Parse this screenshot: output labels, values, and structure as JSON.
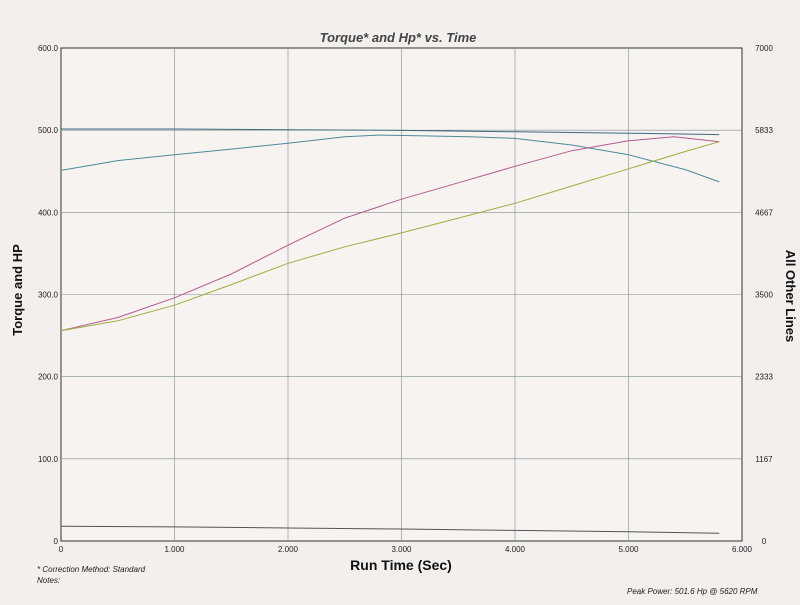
{
  "chart_data": {
    "type": "line",
    "title": "Torque* and Hp* vs. Time",
    "xlabel": "Run Time (Sec)",
    "ylabel_left": "Torque and HP",
    "ylabel_right": "All Other Lines",
    "xlim": [
      0,
      6
    ],
    "ylim_left": [
      0,
      600
    ],
    "ylim_right": [
      0,
      7000
    ],
    "x_ticks": [
      "0",
      "1.000",
      "2.000",
      "3.000",
      "4.000",
      "5.000",
      "6.000"
    ],
    "y_left_ticks": [
      "0",
      "100.0",
      "200.0",
      "300.0",
      "400.0",
      "500.0",
      "600.0"
    ],
    "y_right_ticks": [
      "0",
      "1167",
      "2333",
      "3500",
      "4667",
      "5833",
      "7000"
    ],
    "grid": true,
    "series": [
      {
        "color": "#4f8a99",
        "axis": "left",
        "x": [
          0,
          0.5,
          1.0,
          1.5,
          2.0,
          2.5,
          2.8,
          3.2,
          3.6,
          4.0,
          4.5,
          5.0,
          5.5,
          5.8
        ],
        "y": [
          451,
          463,
          470,
          477,
          484,
          492,
          494,
          493,
          492,
          490,
          482,
          470,
          452,
          437
        ]
      },
      {
        "color": "#b65a8e",
        "axis": "left",
        "x": [
          0,
          0.5,
          1.0,
          1.5,
          2.0,
          2.5,
          3.0,
          3.5,
          4.0,
          4.5,
          5.0,
          5.4,
          5.8
        ],
        "y": [
          256,
          272,
          296,
          325,
          360,
          393,
          416,
          436,
          456,
          475,
          487,
          492,
          486
        ]
      },
      {
        "color": "#9fae3e",
        "axis": "left",
        "x": [
          0,
          0.5,
          1.0,
          1.5,
          2.0,
          2.5,
          3.0,
          3.5,
          4.0,
          4.5,
          5.0,
          5.5,
          5.8
        ],
        "y": [
          256,
          268,
          287,
          312,
          338,
          358,
          375,
          393,
          411,
          432,
          453,
          474,
          486
        ]
      },
      {
        "color": "#3d6b7e",
        "axis": "right",
        "x": [
          0,
          1.0,
          2.0,
          3.0,
          4.0,
          5.0,
          5.8
        ],
        "y": [
          5850,
          5850,
          5840,
          5830,
          5810,
          5790,
          5770
        ]
      },
      {
        "color": "#555555",
        "axis": "right",
        "x": [
          0,
          1.0,
          2.0,
          3.0,
          4.0,
          5.0,
          5.8
        ],
        "y": [
          210,
          200,
          185,
          170,
          150,
          130,
          110
        ]
      }
    ]
  },
  "notes": {
    "correction": "* Correction Method: Standard",
    "notes_label": "Notes:",
    "peak_power": "Peak Power: 501.6 Hp @ 5620 RPM"
  }
}
